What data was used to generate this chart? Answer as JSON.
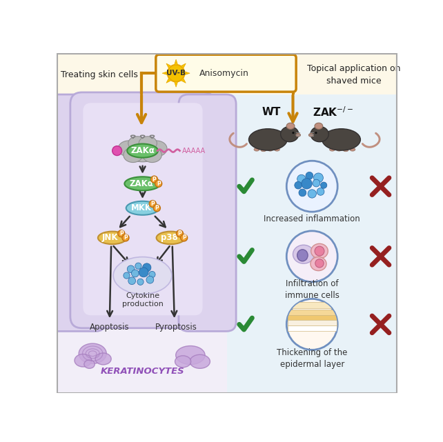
{
  "bg_top_color": "#fdf8e8",
  "bg_left_color": "#f2eef8",
  "bg_right_color": "#e8f2f8",
  "cell_fill": "#ddd3ee",
  "cell_edge": "#b8aad8",
  "cell_inner_fill": "#e8e0f5",
  "arrow_color": "#c8840a",
  "check_color": "#2a8a35",
  "cross_color": "#952020",
  "text_dark": "#222222",
  "zaka_fill": "#6abf6a",
  "zaka_edge": "#3a8f3a",
  "mkk_fill": "#88d0e0",
  "mkk_edge": "#4898b0",
  "jnk_fill": "#e8c050",
  "jnk_edge": "#c09030",
  "p38_fill": "#e8c050",
  "p38_edge": "#c09030",
  "phos_fill": "#f0a030",
  "phos_edge": "#c07010",
  "cloud_fill": "#b8b8b8",
  "cloud_edge": "#909090",
  "cytokine_fill": "#e0ddf0",
  "cytokine_edge": "#c0b8e0",
  "circle_edge": "#7090c0",
  "inflam_fill": "#eaf2ff",
  "immune_fill": "#f5eef8",
  "epidermal_fill": "#fff8f0",
  "label_treating": "Treating skin cells",
  "label_topical": "Topical application on\nshaved mice",
  "label_wt": "WT",
  "label_zak": "ZAK",
  "label_inflam": "Increased inflammation",
  "label_immune": "Infiltration of\nimmune cells",
  "label_epidermal": "Thickening of the\nepidermal layer",
  "label_zaka": "ZAKα",
  "label_mkk": "MKK",
  "label_jnk": "JNK",
  "label_p38": "p38",
  "label_cytokine": "Cytokine\nproduction",
  "label_apoptosis": "Apoptosis",
  "label_pyroptosis": "Pyroptosis",
  "label_keratinocytes": "KERATINOCYTES"
}
